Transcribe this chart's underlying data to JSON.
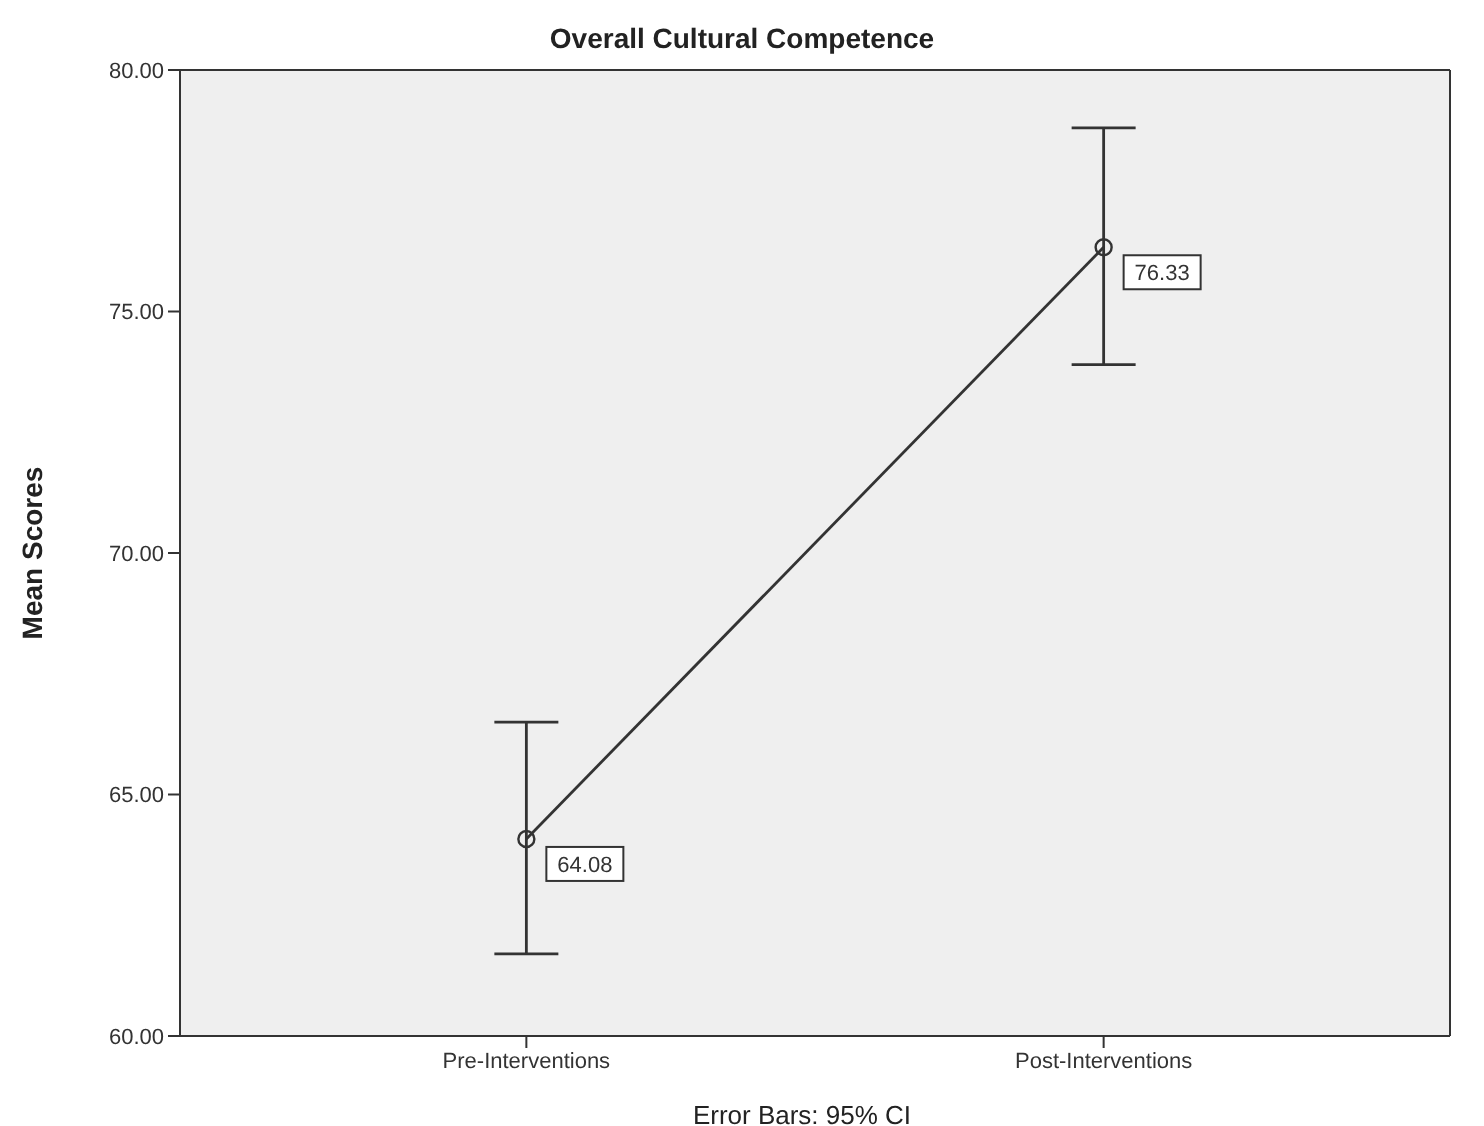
{
  "chart_data": {
    "type": "line",
    "title": "Overall Cultural Competence",
    "ylabel": "Mean Scores",
    "annotations": [
      "Error Bars: 95% CI"
    ],
    "categories": [
      "Pre-Interventions",
      "Post-Interventions"
    ],
    "series": [
      {
        "color": "#333333",
        "values": [
          64.08,
          76.33
        ],
        "errors": [
          [
            61.7,
            66.5
          ],
          [
            73.9,
            78.8
          ]
        ]
      }
    ],
    "ylim": [
      60,
      80
    ],
    "yticks": [
      {
        "value": 60,
        "label": "60.00"
      },
      {
        "value": 65,
        "label": "65.00"
      },
      {
        "value": 70,
        "label": "70.00"
      },
      {
        "value": 75,
        "label": "75.00"
      },
      {
        "value": 80,
        "label": "80.00"
      }
    ],
    "data_labels": true,
    "marker": "circle",
    "line_style": "solid",
    "grid": false
  }
}
